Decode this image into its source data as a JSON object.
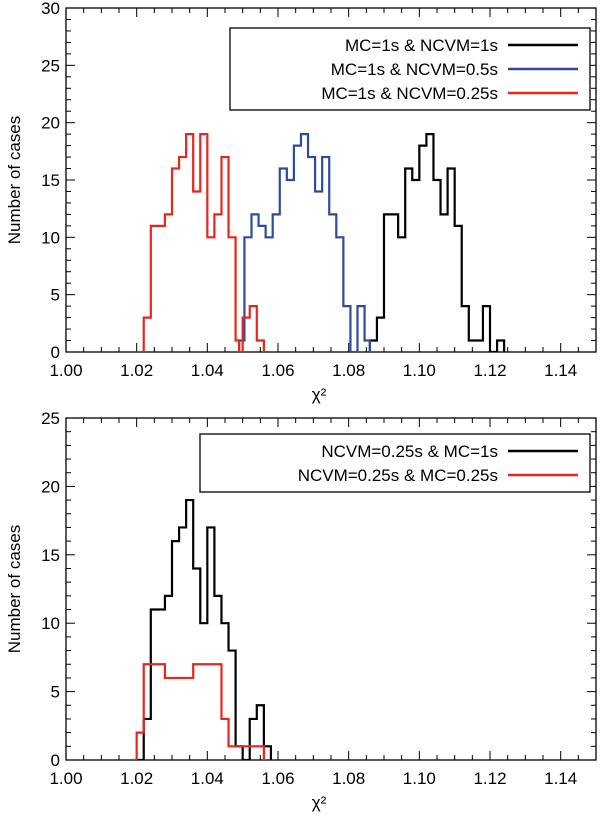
{
  "chart_data": [
    {
      "type": "histogram",
      "ylabel": "Number of cases",
      "xlabel": "χ²",
      "xlim": [
        1.0,
        1.15
      ],
      "ylim": [
        0,
        30
      ],
      "x_ticks": [
        "1.00",
        "1.02",
        "1.04",
        "1.06",
        "1.08",
        "1.10",
        "1.12",
        "1.14"
      ],
      "y_ticks": [
        "0",
        "5",
        "10",
        "15",
        "20",
        "25",
        "30"
      ],
      "legend_position": "top-right",
      "series": [
        {
          "name": "MC=1s & NCVM=1s",
          "color": "#000000",
          "edges": [
            1.086,
            1.088,
            1.09,
            1.092,
            1.094,
            1.096,
            1.098,
            1.1,
            1.102,
            1.104,
            1.106,
            1.108,
            1.11,
            1.112,
            1.114,
            1.116,
            1.118,
            1.12,
            1.122,
            1.124
          ],
          "counts": [
            1,
            3,
            12,
            12,
            10,
            16,
            15,
            18,
            19,
            15,
            12,
            16,
            11,
            4,
            1,
            1,
            4,
            0,
            1
          ]
        },
        {
          "name": "MC=1s & NCVM=0.5s",
          "color": "#2e4b9e",
          "edges": [
            1.049,
            1.0505,
            1.0525,
            1.0545,
            1.0565,
            1.0585,
            1.0605,
            1.0625,
            1.0645,
            1.0665,
            1.0685,
            1.0705,
            1.0725,
            1.0745,
            1.0765,
            1.0785,
            1.0805,
            1.0825,
            1.0845,
            1.086
          ],
          "counts": [
            1,
            10,
            12,
            11,
            10,
            12,
            16,
            15,
            18,
            19,
            17,
            14,
            17,
            12,
            10,
            4,
            0,
            4,
            1
          ]
        },
        {
          "name": "MC=1s & NCVM=0.25s",
          "color": "#e8261d",
          "edges": [
            1.02,
            1.022,
            1.024,
            1.026,
            1.028,
            1.03,
            1.032,
            1.034,
            1.036,
            1.038,
            1.04,
            1.042,
            1.044,
            1.046,
            1.048,
            1.049,
            1.05,
            1.052,
            1.054,
            1.056
          ],
          "counts": [
            0,
            3,
            11,
            11,
            12,
            16,
            17,
            19,
            14,
            19,
            10,
            12,
            17,
            10,
            1,
            0,
            3,
            4,
            1
          ]
        }
      ]
    },
    {
      "type": "histogram",
      "ylabel": "Number of cases",
      "xlabel": "χ²",
      "xlim": [
        1.0,
        1.15
      ],
      "ylim": [
        0,
        25
      ],
      "x_ticks": [
        "1.00",
        "1.02",
        "1.04",
        "1.06",
        "1.08",
        "1.10",
        "1.12",
        "1.14"
      ],
      "y_ticks": [
        "0",
        "5",
        "10",
        "15",
        "20",
        "25"
      ],
      "legend_position": "top-right",
      "series": [
        {
          "name": "NCVM=0.25s & MC=1s",
          "color": "#000000",
          "edges": [
            1.02,
            1.022,
            1.024,
            1.026,
            1.028,
            1.03,
            1.032,
            1.034,
            1.036,
            1.038,
            1.04,
            1.042,
            1.044,
            1.046,
            1.048,
            1.05,
            1.052,
            1.054,
            1.056,
            1.058
          ],
          "counts": [
            0,
            3,
            11,
            11,
            12,
            16,
            17,
            19,
            14,
            10,
            17,
            12,
            10,
            8,
            1,
            0,
            3,
            4,
            1
          ]
        },
        {
          "name": "NCVM=0.25s & MC=0.25s",
          "color": "#e8261d",
          "edges": [
            1.018,
            1.02,
            1.022,
            1.024,
            1.026,
            1.028,
            1.03,
            1.032,
            1.034,
            1.036,
            1.038,
            1.04,
            1.042,
            1.044,
            1.046,
            1.048,
            1.05,
            1.052,
            1.054,
            1.056
          ],
          "counts": [
            0,
            2,
            7,
            7,
            7,
            6,
            6,
            6,
            6,
            7,
            7,
            7,
            7,
            3,
            1,
            1,
            1,
            1,
            1
          ]
        }
      ]
    }
  ]
}
